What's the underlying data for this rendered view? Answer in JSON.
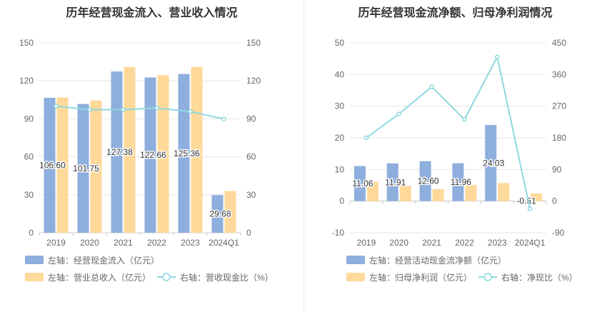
{
  "colors": {
    "bar_primary": "#8eaedd",
    "bar_secondary": "#ffd99a",
    "line": "#8ed8df",
    "grid": "#e6e6e6",
    "axis": "#cccccc"
  },
  "chart_data": [
    {
      "type": "bar",
      "title": "历年经营现金流入、营业收入情况",
      "categories": [
        "2019",
        "2020",
        "2021",
        "2022",
        "2023",
        "2024Q1"
      ],
      "left_axis": {
        "min": 0,
        "max": 150,
        "ticks": [
          0,
          30,
          60,
          90,
          120,
          150
        ]
      },
      "right_axis": {
        "min": 0,
        "max": 150,
        "ticks": [
          0,
          30,
          60,
          90,
          120,
          150
        ]
      },
      "series": [
        {
          "name": "左轴：经营现金流入（亿元）",
          "kind": "bar",
          "axis": "left",
          "values": [
            106.6,
            101.75,
            127.38,
            122.66,
            125.36,
            29.68
          ],
          "labels": [
            "106.60",
            "101.75",
            "127.38",
            "122.66",
            "125.36",
            "29.68"
          ]
        },
        {
          "name": "左轴：营业总收入（亿元）",
          "kind": "bar",
          "axis": "left",
          "values": [
            106.8,
            104.5,
            131.0,
            124.5,
            131.0,
            33.0
          ]
        },
        {
          "name": "右轴：营收现金比（%）",
          "kind": "line",
          "axis": "right",
          "values": [
            100.0,
            97.3,
            97.2,
            98.5,
            95.7,
            89.9
          ]
        }
      ],
      "legend": "bottom",
      "grid": true
    },
    {
      "type": "bar",
      "title": "历年经营现金流净额、归母净利润情况",
      "categories": [
        "2019",
        "2020",
        "2021",
        "2022",
        "2023",
        "2024Q1"
      ],
      "left_axis": {
        "min": -10,
        "max": 50,
        "ticks": [
          -10,
          0,
          10,
          20,
          30,
          40,
          50
        ]
      },
      "right_axis": {
        "min": -90,
        "max": 450,
        "ticks": [
          -90,
          0,
          90,
          180,
          270,
          360,
          450
        ]
      },
      "series": [
        {
          "name": "左轴：经营活动现金流净额（亿元）",
          "kind": "bar",
          "axis": "left",
          "values": [
            11.06,
            11.91,
            12.6,
            11.96,
            24.03,
            -0.51
          ],
          "labels": [
            "11.06",
            "11.91",
            "12.60",
            "11.96",
            "24.03",
            "-0.51"
          ]
        },
        {
          "name": "左轴：归母净利润（亿元）",
          "kind": "bar",
          "axis": "left",
          "values": [
            6.1,
            4.8,
            3.8,
            5.1,
            5.7,
            2.4
          ]
        },
        {
          "name": "右轴：净现比（%）",
          "kind": "line",
          "axis": "right",
          "values": [
            180,
            248,
            325,
            232,
            410,
            -22
          ]
        }
      ],
      "legend": "bottom",
      "grid": true
    }
  ]
}
